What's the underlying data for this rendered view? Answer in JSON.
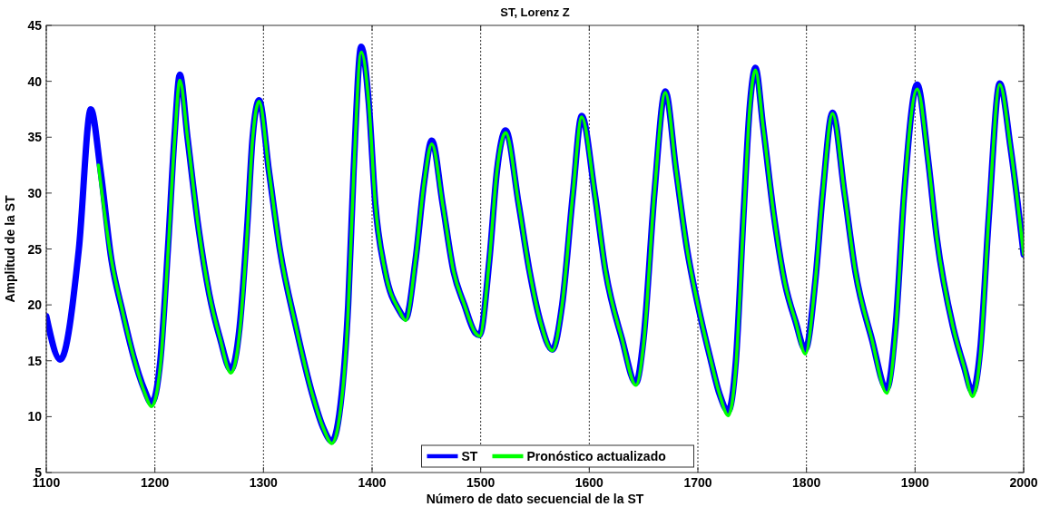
{
  "chart_data": {
    "type": "line",
    "title": "ST, Lorenz Z",
    "xlabel": "Número de dato secuencial de la ST",
    "ylabel": "Amplitud de la ST",
    "xlim": [
      1100,
      2000
    ],
    "xticks": [
      1100,
      1200,
      1300,
      1400,
      1500,
      1600,
      1700,
      1800,
      1900,
      2000
    ],
    "ylim": [
      5,
      45
    ],
    "yticks": [
      5,
      10,
      15,
      20,
      25,
      30,
      35,
      40,
      45
    ],
    "grid": "x",
    "legend": "bottom",
    "line_style": "solid",
    "marker": "none",
    "series": [
      {
        "name": "ST",
        "color": "#0000ff",
        "x": [
          1100,
          1113,
          1130,
          1141,
          1150,
          1160,
          1170,
          1180,
          1190,
          1197,
          1205,
          1212,
          1218,
          1223,
          1230,
          1240,
          1250,
          1260,
          1270,
          1278,
          1285,
          1290,
          1296,
          1305,
          1315,
          1330,
          1345,
          1355,
          1363,
          1372,
          1378,
          1383,
          1390,
          1397,
          1403,
          1412,
          1425,
          1431,
          1440,
          1448,
          1455,
          1465,
          1475,
          1485,
          1495,
          1499,
          1508,
          1515,
          1523,
          1535,
          1545,
          1555,
          1566,
          1575,
          1585,
          1593,
          1605,
          1615,
          1630,
          1643,
          1650,
          1660,
          1670,
          1680,
          1690,
          1700,
          1712,
          1720,
          1728,
          1735,
          1742,
          1748,
          1753,
          1760,
          1770,
          1780,
          1790,
          1799,
          1808,
          1815,
          1824,
          1835,
          1845,
          1860,
          1874,
          1882,
          1890,
          1902,
          1912,
          1920,
          1935,
          1945,
          1953,
          1960,
          1968,
          1978,
          1988,
          2000
        ],
        "values": [
          19,
          15.1,
          25,
          37.5,
          32,
          24,
          19.5,
          15.5,
          12.5,
          11.2,
          15,
          25,
          35,
          40.6,
          35,
          27,
          21,
          17,
          14.2,
          18,
          27,
          35,
          38.3,
          32,
          25,
          18,
          12,
          9,
          7.8,
          12,
          20,
          32,
          43.1,
          38,
          29,
          23,
          19.5,
          18.8,
          24,
          31,
          34.7,
          29,
          23,
          20,
          17.5,
          17.3,
          24,
          32,
          35.6,
          29,
          23,
          18.5,
          16,
          20,
          30,
          36.9,
          30,
          23,
          17,
          13,
          17,
          30,
          39.1,
          32,
          25,
          20,
          15,
          12,
          10.5,
          15,
          28,
          38,
          41.2,
          36,
          28,
          22,
          18.5,
          16,
          22,
          30,
          37.2,
          30,
          23,
          17,
          12.5,
          18,
          30,
          39.7,
          33,
          26,
          18,
          14.5,
          12.2,
          16,
          28,
          39.8,
          34,
          24.5
        ]
      },
      {
        "name": "Pronóstico actualizado",
        "color": "#00ff00",
        "x": [
          1148,
          1160,
          1170,
          1180,
          1190,
          1197,
          1205,
          1212,
          1218,
          1223,
          1230,
          1240,
          1250,
          1260,
          1270,
          1278,
          1285,
          1290,
          1296,
          1305,
          1315,
          1330,
          1345,
          1355,
          1363,
          1372,
          1378,
          1383,
          1390,
          1397,
          1403,
          1412,
          1425,
          1431,
          1440,
          1448,
          1455,
          1465,
          1475,
          1485,
          1495,
          1499,
          1508,
          1515,
          1523,
          1535,
          1545,
          1555,
          1566,
          1575,
          1585,
          1593,
          1605,
          1615,
          1630,
          1643,
          1650,
          1660,
          1670,
          1680,
          1690,
          1700,
          1712,
          1720,
          1728,
          1735,
          1742,
          1748,
          1753,
          1760,
          1770,
          1780,
          1790,
          1799,
          1808,
          1815,
          1824,
          1835,
          1845,
          1860,
          1874,
          1882,
          1890,
          1902,
          1912,
          1920,
          1935,
          1945,
          1953,
          1960,
          1968,
          1978,
          1988,
          2000
        ],
        "values": [
          32.5,
          24,
          19.5,
          15.5,
          12.3,
          10.9,
          14.5,
          24.5,
          34.5,
          40.1,
          35,
          27,
          21,
          17,
          13.9,
          17.5,
          26.5,
          34.8,
          38.2,
          32,
          25,
          18,
          12,
          9,
          7.6,
          11.5,
          19.5,
          31.5,
          42.6,
          38,
          29,
          23,
          19.5,
          18.6,
          24,
          31,
          34.4,
          29,
          23,
          20,
          17.5,
          17.2,
          24,
          32,
          35.4,
          29,
          23,
          18.5,
          15.9,
          20,
          30,
          36.8,
          30,
          23,
          17,
          12.8,
          16.5,
          30,
          39,
          32,
          25,
          20,
          15,
          12,
          10.1,
          14.5,
          27.5,
          37.8,
          41,
          36,
          28,
          22,
          18.5,
          15.6,
          22,
          30,
          37.1,
          30,
          23,
          17,
          12.1,
          17.5,
          30,
          39.3,
          33,
          26,
          18,
          14.5,
          11.8,
          15.5,
          28,
          39.7,
          34,
          24.5
        ]
      }
    ]
  }
}
